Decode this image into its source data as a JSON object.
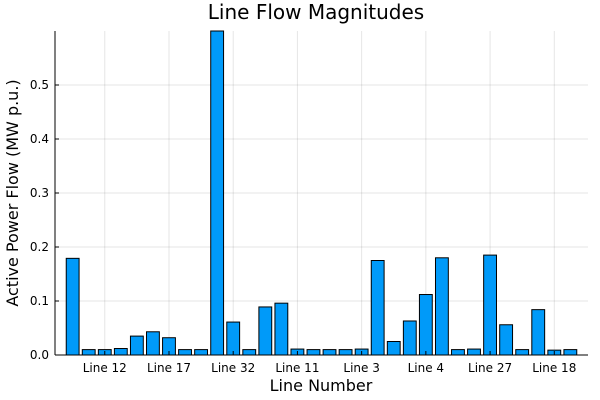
{
  "chart_data": {
    "type": "bar",
    "title": "Line Flow Magnitudes",
    "xlabel": "Line Number",
    "ylabel": "Active Power Flow (MW p.u.)",
    "ylim": [
      0,
      0.6
    ],
    "yticks": [
      0.0,
      0.1,
      0.2,
      0.3,
      0.4,
      0.5
    ],
    "ytick_labels": [
      "0.0",
      "0.1",
      "0.2",
      "0.3",
      "0.4",
      "0.5"
    ],
    "xtick_labels_shown": [
      "Line 12",
      "Line 17",
      "Line 32",
      "Line 11",
      "Line 3",
      "Line 4",
      "Line 27",
      "Line 18"
    ],
    "xtick_label_every": 4,
    "xtick_label_offset": 2,
    "grid": true,
    "legend": false,
    "bar_color": "#009af9",
    "values": [
      0.179,
      0.01,
      0.01,
      0.012,
      0.035,
      0.043,
      0.032,
      0.01,
      0.01,
      0.6,
      0.061,
      0.01,
      0.089,
      0.096,
      0.011,
      0.01,
      0.01,
      0.01,
      0.011,
      0.175,
      0.025,
      0.063,
      0.112,
      0.18,
      0.01,
      0.011,
      0.185,
      0.056,
      0.01,
      0.084,
      0.009,
      0.01
    ]
  }
}
